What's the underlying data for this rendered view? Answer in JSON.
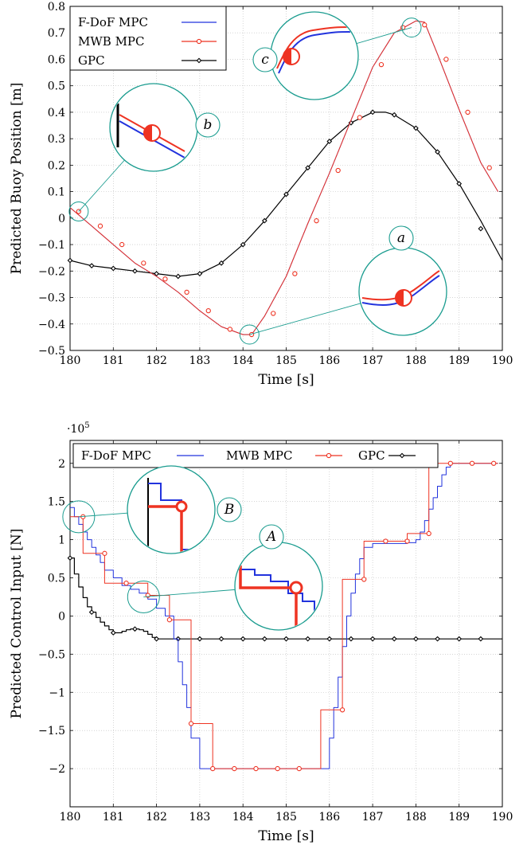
{
  "colors": {
    "fdof": "#2233dd",
    "mwb": "#ee3322",
    "gpc": "#000000",
    "zoom": "#1a9c8f",
    "grid": "#bbbbbb"
  },
  "chart_data": [
    {
      "type": "line",
      "xlabel": "Time [s]",
      "ylabel": "Predicted Buoy Position [m]",
      "xlim": [
        180,
        190
      ],
      "ylim": [
        -0.5,
        0.8
      ],
      "xticks": [
        "180",
        "181",
        "182",
        "183",
        "184",
        "185",
        "186",
        "187",
        "188",
        "189",
        "190"
      ],
      "yticks": [
        "−0.5",
        "−0.4",
        "−0.3",
        "−0.2",
        "−0.1",
        "0",
        "0.1",
        "0.2",
        "0.3",
        "0.4",
        "0.5",
        "0.6",
        "0.7",
        "0.8"
      ],
      "grid": true,
      "legend_position": "top-left",
      "series": [
        {
          "name": "F-DoF MPC",
          "color_key": "fdof",
          "marker": "none",
          "x": [
            180.0,
            180.5,
            181.0,
            181.5,
            182.0,
            182.5,
            183.0,
            183.5,
            184.0,
            184.2,
            184.5,
            185.0,
            185.5,
            186.0,
            186.5,
            187.0,
            187.5,
            188.0,
            188.2,
            188.5,
            189.0,
            189.5,
            189.9
          ],
          "y": [
            0.04,
            -0.03,
            -0.1,
            -0.17,
            -0.22,
            -0.28,
            -0.35,
            -0.41,
            -0.44,
            -0.44,
            -0.37,
            -0.22,
            -0.02,
            0.17,
            0.37,
            0.57,
            0.7,
            0.745,
            0.74,
            0.62,
            0.41,
            0.21,
            0.1
          ]
        },
        {
          "name": "MWB MPC",
          "color_key": "mwb",
          "marker": "circle",
          "x": [
            180.0,
            180.5,
            181.0,
            181.5,
            182.0,
            182.5,
            183.0,
            183.5,
            184.0,
            184.2,
            184.5,
            185.0,
            185.5,
            186.0,
            186.5,
            187.0,
            187.5,
            188.0,
            188.2,
            188.5,
            189.0,
            189.5,
            189.9
          ],
          "y": [
            0.04,
            -0.03,
            -0.1,
            -0.17,
            -0.22,
            -0.28,
            -0.35,
            -0.41,
            -0.44,
            -0.44,
            -0.37,
            -0.22,
            -0.02,
            0.17,
            0.37,
            0.57,
            0.7,
            0.745,
            0.74,
            0.62,
            0.41,
            0.21,
            0.1
          ],
          "marker_x": [
            180.2,
            180.7,
            181.2,
            181.7,
            182.2,
            182.7,
            183.2,
            183.7,
            184.2,
            184.7,
            185.2,
            185.7,
            186.2,
            186.7,
            187.2,
            187.7,
            188.2,
            188.7,
            189.2,
            189.7
          ],
          "marker_y": [
            0.025,
            -0.03,
            -0.1,
            -0.17,
            -0.23,
            -0.28,
            -0.35,
            -0.42,
            -0.44,
            -0.36,
            -0.21,
            -0.01,
            0.18,
            0.38,
            0.58,
            0.72,
            0.73,
            0.6,
            0.4,
            0.19
          ]
        },
        {
          "name": "GPC",
          "color_key": "gpc",
          "marker": "diamond",
          "x": [
            180.0,
            180.5,
            181.0,
            181.5,
            182.0,
            182.5,
            183.0,
            183.5,
            184.0,
            184.5,
            185.0,
            185.5,
            186.0,
            186.5,
            187.0,
            187.3,
            187.5,
            188.0,
            188.5,
            189.0,
            189.5,
            190.0
          ],
          "y": [
            -0.16,
            -0.18,
            -0.19,
            -0.2,
            -0.21,
            -0.22,
            -0.21,
            -0.17,
            -0.1,
            -0.01,
            0.09,
            0.19,
            0.29,
            0.36,
            0.4,
            0.4,
            0.39,
            0.34,
            0.25,
            0.13,
            -0.01,
            -0.16
          ],
          "marker_x": [
            180.0,
            180.5,
            181.0,
            181.5,
            182.0,
            182.5,
            183.0,
            183.5,
            184.0,
            184.5,
            185.0,
            185.5,
            186.0,
            186.5,
            187.0,
            187.5,
            188.0,
            188.5,
            189.0,
            189.5
          ],
          "marker_y": [
            -0.16,
            -0.18,
            -0.19,
            -0.2,
            -0.21,
            -0.22,
            -0.21,
            -0.17,
            -0.1,
            -0.01,
            0.09,
            0.19,
            0.29,
            0.36,
            0.4,
            0.39,
            0.34,
            0.25,
            0.13,
            -0.04
          ]
        }
      ],
      "annotations": [
        {
          "label": "a",
          "target": [
            184.15,
            -0.44
          ]
        },
        {
          "label": "b",
          "target": [
            180.2,
            0.025
          ]
        },
        {
          "label": "c",
          "target": [
            187.9,
            0.72
          ]
        }
      ]
    },
    {
      "type": "line",
      "xlabel": "Time [s]",
      "ylabel": "Predicted Control Input [N]",
      "y_multiplier": "·10",
      "y_multiplier_exp": "5",
      "xlim": [
        180,
        190
      ],
      "ylim": [
        -2.5,
        2.3
      ],
      "xticks": [
        "180",
        "181",
        "182",
        "183",
        "184",
        "185",
        "186",
        "187",
        "188",
        "189",
        "190"
      ],
      "yticks": [
        "−2",
        "−1.5",
        "−1",
        "−0.5",
        "0",
        "0.5",
        "1",
        "1.5",
        "2"
      ],
      "grid": true,
      "legend_position": "top",
      "series": [
        {
          "name": "F-DoF MPC",
          "color_key": "fdof",
          "marker": "none",
          "step": true,
          "x": [
            180.0,
            180.1,
            180.2,
            180.3,
            180.4,
            180.5,
            180.6,
            180.7,
            180.8,
            181.0,
            181.2,
            181.4,
            181.6,
            181.8,
            182.0,
            182.2,
            182.4,
            182.5,
            182.6,
            182.7,
            182.8,
            183.0,
            185.0,
            185.8,
            186.0,
            186.1,
            186.2,
            186.3,
            186.4,
            186.5,
            186.6,
            186.7,
            186.8,
            187.0,
            187.5,
            187.8,
            188.0,
            188.1,
            188.2,
            188.3,
            188.4,
            188.5,
            188.6,
            188.7,
            188.8,
            189.0,
            189.9
          ],
          "y": [
            1.42,
            1.3,
            1.2,
            1.1,
            1.0,
            0.9,
            0.8,
            0.7,
            0.6,
            0.5,
            0.4,
            0.35,
            0.3,
            0.22,
            0.1,
            0.0,
            -0.3,
            -0.6,
            -0.9,
            -1.2,
            -1.6,
            -2.0,
            -2.0,
            -2.0,
            -1.6,
            -1.2,
            -0.8,
            -0.4,
            0.0,
            0.3,
            0.55,
            0.75,
            0.9,
            0.95,
            0.95,
            0.96,
            1.0,
            1.1,
            1.25,
            1.4,
            1.55,
            1.7,
            1.85,
            1.95,
            2.0,
            2.0,
            2.0
          ]
        },
        {
          "name": "MWB MPC",
          "color_key": "mwb",
          "marker": "circle",
          "step": true,
          "x": [
            180.0,
            180.3,
            180.8,
            181.3,
            181.8,
            182.3,
            182.8,
            183.3,
            183.8,
            184.3,
            184.8,
            185.3,
            185.8,
            186.3,
            186.8,
            187.3,
            187.8,
            188.3,
            188.8,
            189.3,
            189.8,
            189.9
          ],
          "y": [
            1.3,
            0.82,
            0.43,
            0.43,
            0.27,
            -0.05,
            -1.41,
            -2.0,
            -2.0,
            -2.0,
            -2.0,
            -2.0,
            -1.23,
            0.48,
            0.98,
            0.98,
            1.08,
            2.0,
            2.0,
            2.0,
            2.0,
            2.0
          ],
          "marker_x": [
            180.3,
            180.8,
            181.3,
            181.8,
            182.3,
            182.8,
            183.3,
            183.8,
            184.3,
            184.8,
            185.3,
            186.3,
            186.8,
            187.3,
            187.8,
            188.3,
            188.8,
            189.3,
            189.8
          ],
          "marker_y": [
            1.3,
            0.82,
            0.43,
            0.27,
            -0.05,
            -1.41,
            -2.0,
            -2.0,
            -2.0,
            -2.0,
            -2.0,
            -1.23,
            0.48,
            0.98,
            0.98,
            1.08,
            2.0,
            2.0,
            2.0
          ]
        },
        {
          "name": "GPC",
          "color_key": "gpc",
          "marker": "diamond",
          "step": true,
          "x": [
            180.0,
            180.1,
            180.2,
            180.3,
            180.4,
            180.5,
            180.6,
            180.7,
            180.8,
            180.9,
            181.0,
            181.1,
            181.2,
            181.3,
            181.4,
            181.5,
            181.6,
            181.7,
            181.8,
            181.9,
            182.0,
            190.0
          ],
          "y": [
            0.76,
            0.55,
            0.38,
            0.24,
            0.12,
            0.05,
            -0.02,
            -0.08,
            -0.13,
            -0.18,
            -0.22,
            -0.22,
            -0.2,
            -0.18,
            -0.17,
            -0.17,
            -0.18,
            -0.2,
            -0.24,
            -0.28,
            -0.3,
            -0.3
          ],
          "marker_x": [
            180.0,
            180.5,
            181.0,
            181.5,
            182.0,
            182.5,
            183.0,
            183.5,
            184.0,
            184.5,
            185.0,
            185.5,
            186.0,
            186.5,
            187.0,
            187.5,
            188.0,
            188.5,
            189.0,
            189.5
          ],
          "marker_y": [
            0.76,
            0.05,
            -0.22,
            -0.17,
            -0.3,
            -0.3,
            -0.3,
            -0.3,
            -0.3,
            -0.3,
            -0.3,
            -0.3,
            -0.3,
            -0.3,
            -0.3,
            -0.3,
            -0.3,
            -0.3,
            -0.3,
            -0.3
          ]
        }
      ],
      "annotations": [
        {
          "label": "A",
          "target": [
            181.7,
            0.25
          ]
        },
        {
          "label": "B",
          "target": [
            180.2,
            1.3
          ]
        }
      ]
    }
  ]
}
